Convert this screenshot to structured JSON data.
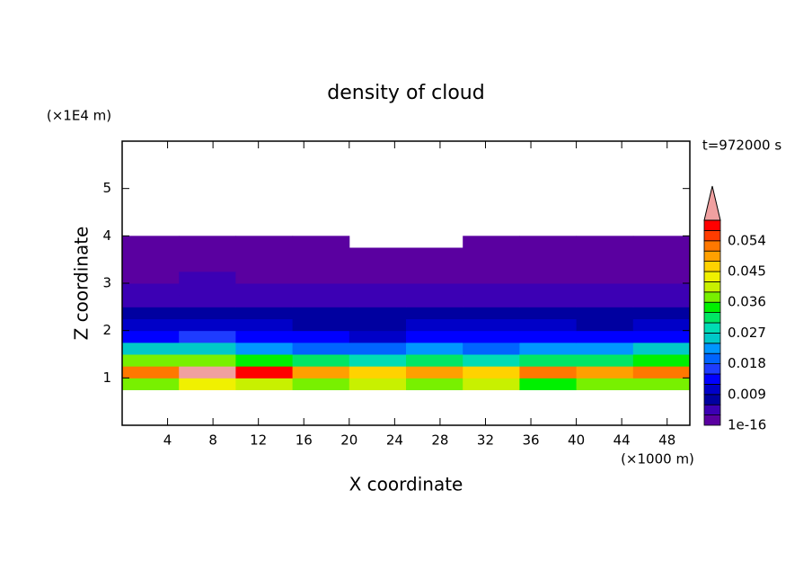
{
  "chart_data": {
    "type": "contour",
    "title": "density of cloud",
    "xlabel": "X coordinate",
    "ylabel": "Z coordinate",
    "x_unit": "(×1000 m)",
    "y_unit": "(×1E4 m)",
    "time_label": "t=972000 s",
    "xlim": [
      0,
      50
    ],
    "ylim": [
      0,
      6
    ],
    "xticks": [
      4,
      8,
      12,
      16,
      20,
      24,
      28,
      32,
      36,
      40,
      44,
      48
    ],
    "yticks": [
      1,
      2,
      3,
      4,
      5
    ],
    "x_edges": [
      0,
      5,
      10,
      15,
      20,
      25,
      30,
      35,
      40,
      45,
      50
    ],
    "y_edges": [
      0.75,
      1.0,
      1.25,
      1.5,
      1.75,
      2.0,
      2.25,
      2.5,
      2.75,
      3.0,
      3.25,
      3.5,
      3.75,
      4.0
    ],
    "z": [
      [
        0.038,
        0.042,
        0.041,
        0.036,
        0.039,
        0.037,
        0.04,
        0.035,
        0.038,
        0.037
      ],
      [
        0.052,
        0.062,
        0.058,
        0.05,
        0.047,
        0.049,
        0.046,
        0.051,
        0.048,
        0.053
      ],
      [
        0.036,
        0.038,
        0.033,
        0.03,
        0.029,
        0.031,
        0.028,
        0.03,
        0.032,
        0.034
      ],
      [
        0.026,
        0.025,
        0.022,
        0.02,
        0.019,
        0.021,
        0.02,
        0.022,
        0.023,
        0.024
      ],
      [
        0.014,
        0.015,
        0.013,
        0.012,
        0.011,
        0.012,
        0.013,
        0.014,
        0.012,
        0.013
      ],
      [
        0.01,
        0.011,
        0.009,
        0.008,
        0.008,
        0.009,
        0.009,
        0.01,
        0.008,
        0.009
      ],
      [
        0.007,
        0.008,
        0.007,
        0.006,
        0.006,
        0.007,
        0.007,
        0.007,
        0.006,
        0.007
      ],
      [
        0.005,
        0.005,
        0.004,
        0.004,
        0.005,
        0.005,
        0.004,
        0.005,
        0.004,
        0.005
      ],
      [
        0.004,
        0.004,
        0.003,
        0.003,
        0.004,
        0.003,
        0.003,
        0.004,
        0.003,
        0.004
      ],
      [
        0.002,
        0.003,
        0.002,
        0.002,
        0.002,
        0.002,
        0.002,
        0.002,
        0.002,
        0.002
      ],
      [
        0.001,
        0.002,
        0.001,
        0.001,
        0.001,
        0.001,
        0.001,
        0.001,
        0.001,
        0.001
      ],
      [
        0.001,
        0.001,
        0.001,
        0.001,
        0.001,
        0.001,
        0.001,
        0.001,
        0.001,
        0.001
      ],
      [
        0.0005,
        0.0005,
        0.0005,
        0.0005,
        null,
        null,
        0.0005,
        0.0005,
        0.0005,
        0.0005
      ]
    ],
    "levels": [
      1e-16,
      0.003,
      0.006,
      0.009,
      0.012,
      0.015,
      0.018,
      0.021,
      0.024,
      0.027,
      0.03,
      0.033,
      0.036,
      0.039,
      0.042,
      0.045,
      0.048,
      0.051,
      0.054,
      0.057,
      0.06
    ],
    "colors": [
      "#5a00a0",
      "#3c00b4",
      "#0000a0",
      "#0000c8",
      "#0000ff",
      "#1e3cff",
      "#0064ff",
      "#0096ff",
      "#00c8c8",
      "#00dcb4",
      "#00e664",
      "#00f000",
      "#78f000",
      "#c8f000",
      "#f0f000",
      "#ffd200",
      "#ffa000",
      "#ff7800",
      "#ff3c00",
      "#ff0000"
    ],
    "extend_color": "#f0a0a0",
    "colorbar_ticks": [
      {
        "value": 1e-16,
        "label": "1e-16"
      },
      0.009,
      0.018,
      0.027,
      0.036,
      0.045,
      0.054
    ]
  }
}
